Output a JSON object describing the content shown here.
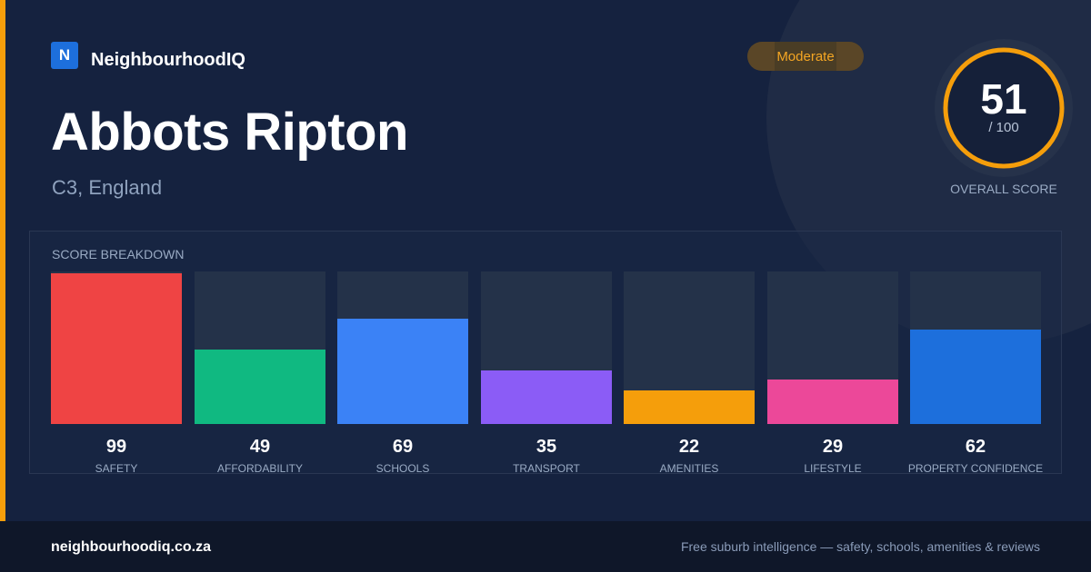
{
  "brand": {
    "logo_letter": "N",
    "name": "NeighbourhoodIQ"
  },
  "location": {
    "title": "Abbots Ripton",
    "subtitle": "C3, England"
  },
  "rating": {
    "label": "Moderate",
    "color": "#f5a623"
  },
  "overall": {
    "score": "51",
    "max": "/ 100",
    "caption": "OVERALL SCORE",
    "ring_color": "#f59e0b"
  },
  "breakdown": {
    "title": "SCORE BREAKDOWN"
  },
  "chart_data": {
    "type": "bar",
    "categories": [
      "SAFETY",
      "AFFORDABILITY",
      "SCHOOLS",
      "TRANSPORT",
      "AMENITIES",
      "LIFESTYLE",
      "PROPERTY CONFIDENCE"
    ],
    "values": [
      99,
      49,
      69,
      35,
      22,
      29,
      62
    ],
    "value_labels": [
      "99",
      "49",
      "69",
      "35",
      "22",
      "29",
      "62"
    ],
    "colors": [
      "#ef4444",
      "#10b981",
      "#3b82f6",
      "#8b5cf6",
      "#f59e0b",
      "#ec4899",
      "#1d6fdc"
    ],
    "ylim": [
      0,
      100
    ]
  },
  "footer": {
    "url": "neighbourhoodiq.co.za",
    "tagline": "Free suburb intelligence — safety, schools, amenities & reviews"
  }
}
